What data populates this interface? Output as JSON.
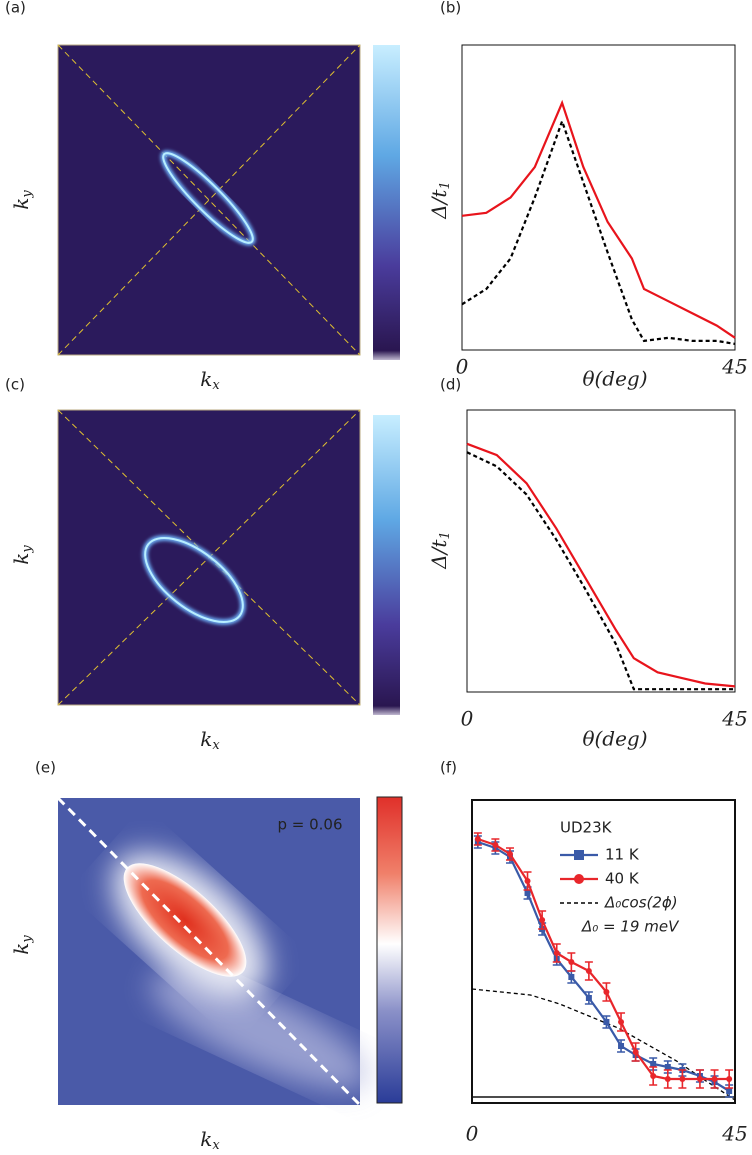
{
  "chart_data": [
    {
      "type": "heatmap",
      "panel_label": "(a)",
      "xlabel": {
        "base": "k",
        "sub": "x"
      },
      "ylabel": {
        "base": "k",
        "sub": "y"
      }
    },
    {
      "type": "line",
      "panel_label": "(b)",
      "xlabel": "θ(deg)",
      "ylabel": {
        "base": "Δ/t",
        "sub": "1"
      },
      "xlim": [
        0,
        45
      ],
      "ylim": [
        0,
        1
      ],
      "xticks": [
        0,
        45
      ],
      "x": [
        0,
        4,
        8,
        12,
        16.5,
        20,
        24,
        28,
        30,
        34,
        38,
        42,
        45
      ],
      "series": [
        {
          "color": "#e8141c",
          "linestyle": "solid",
          "values": [
            0.44,
            0.45,
            0.5,
            0.6,
            0.81,
            0.6,
            0.42,
            0.3,
            0.2,
            0.16,
            0.12,
            0.08,
            0.04
          ]
        },
        {
          "color": "#000000",
          "linestyle": "dashed",
          "values": [
            0.15,
            0.2,
            0.3,
            0.5,
            0.75,
            0.55,
            0.32,
            0.1,
            0.03,
            0.04,
            0.03,
            0.03,
            0.02
          ]
        }
      ]
    },
    {
      "type": "heatmap",
      "panel_label": "(c)",
      "xlabel": {
        "base": "k",
        "sub": "x"
      },
      "ylabel": {
        "base": "k",
        "sub": "y"
      }
    },
    {
      "type": "line",
      "panel_label": "(d)",
      "xlabel": "θ(deg)",
      "ylabel": {
        "base": "Δ/t",
        "sub": "1"
      },
      "xlim": [
        0,
        45
      ],
      "ylim": [
        0,
        1
      ],
      "xticks": [
        0,
        45
      ],
      "x": [
        0,
        5,
        10,
        15,
        20,
        25,
        28,
        32,
        36,
        40,
        45
      ],
      "series": [
        {
          "color": "#e8141c",
          "linestyle": "solid",
          "values": [
            0.88,
            0.84,
            0.74,
            0.58,
            0.4,
            0.22,
            0.12,
            0.07,
            0.05,
            0.03,
            0.02
          ]
        },
        {
          "color": "#000000",
          "linestyle": "dashed",
          "values": [
            0.85,
            0.8,
            0.7,
            0.54,
            0.36,
            0.17,
            0.01,
            0.01,
            0.01,
            0.01,
            0.01
          ]
        }
      ]
    },
    {
      "type": "heatmap",
      "panel_label": "(e)",
      "xlabel": {
        "base": "k",
        "sub": "x"
      },
      "ylabel": {
        "base": "k",
        "sub": "y"
      },
      "annotation": "p = 0.06"
    },
    {
      "type": "line",
      "panel_label": "(f)",
      "legend_title": "UD23K",
      "annotation": "Δ₀ = 19 meV",
      "xlim": [
        0,
        45
      ],
      "ylim": [
        0,
        1
      ],
      "xticks": [
        0,
        45
      ],
      "x": [
        1,
        4,
        6.5,
        9.5,
        12,
        14.5,
        17,
        20,
        23,
        25.5,
        28,
        31,
        33.5,
        36,
        39,
        41.5,
        44
      ],
      "series": [
        {
          "name": "11 K",
          "color": "#3a5aa8",
          "linestyle": "solid",
          "marker": "square",
          "values": [
            0.86,
            0.84,
            0.81,
            0.69,
            0.57,
            0.47,
            0.41,
            0.34,
            0.26,
            0.18,
            0.15,
            0.12,
            0.11,
            0.1,
            0.08,
            0.06,
            0.03
          ],
          "errors": [
            0.02,
            0.02,
            0.02,
            0.02,
            0.02,
            0.02,
            0.02,
            0.02,
            0.02,
            0.02,
            0.02,
            0.02,
            0.02,
            0.02,
            0.02,
            0.02,
            0.02
          ]
        },
        {
          "name": "40 K",
          "color": "#e8262b",
          "linestyle": "solid",
          "marker": "circle",
          "values": [
            0.87,
            0.85,
            0.82,
            0.73,
            0.6,
            0.49,
            0.46,
            0.43,
            0.36,
            0.26,
            0.16,
            0.08,
            0.07,
            0.07,
            0.07,
            0.07,
            0.07
          ],
          "errors": [
            0.02,
            0.02,
            0.02,
            0.03,
            0.03,
            0.03,
            0.03,
            0.03,
            0.03,
            0.03,
            0.03,
            0.03,
            0.03,
            0.03,
            0.03,
            0.03,
            0.03
          ]
        }
      ],
      "curve": {
        "name": "Δ₀cos(2ϕ)",
        "color": "#000000",
        "linestyle": "dashed",
        "x": [
          0,
          5,
          10,
          15,
          20,
          25,
          30,
          35,
          40,
          45
        ],
        "values": [
          0.37,
          0.36,
          0.35,
          0.32,
          0.28,
          0.24,
          0.185,
          0.13,
          0.064,
          0
        ]
      }
    }
  ]
}
